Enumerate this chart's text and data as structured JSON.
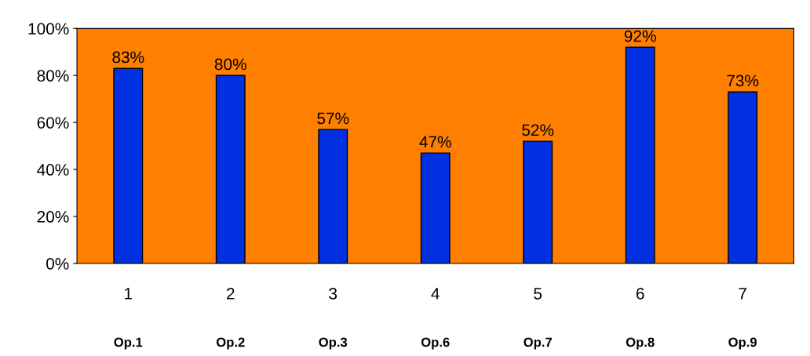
{
  "chart_data": {
    "type": "bar",
    "categories": [
      "1",
      "2",
      "3",
      "4",
      "5",
      "6",
      "7"
    ],
    "values": [
      83,
      80,
      57,
      47,
      52,
      92,
      73
    ],
    "value_labels": [
      "83%",
      "80%",
      "57%",
      "47%",
      "52%",
      "92%",
      "73%"
    ],
    "color": "#0030e0",
    "ylim": [
      0,
      100
    ],
    "yticks": [
      {
        "value": 0,
        "label": "0%"
      },
      {
        "value": 20,
        "label": "20%"
      },
      {
        "value": 40,
        "label": "40%"
      },
      {
        "value": 60,
        "label": "60%"
      },
      {
        "value": 80,
        "label": "80%"
      },
      {
        "value": 100,
        "label": "100%"
      }
    ],
    "grid": false,
    "annotations": [
      "Op.1",
      "Op.2",
      "Op.3",
      "Op.6",
      "Op.7",
      "Op.8",
      "Op.9"
    ]
  }
}
